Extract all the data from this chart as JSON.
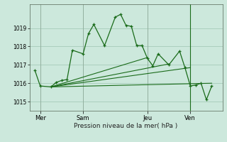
{
  "background_color": "#cce8dc",
  "grid_color": "#aacfbe",
  "line_color": "#1a6b1a",
  "xlabel": "Pression niveau de la mer( hPa )",
  "ylim": [
    1014.5,
    1020.3
  ],
  "yticks": [
    1015,
    1016,
    1017,
    1018,
    1019
  ],
  "ytick_labels": [
    "1015",
    "1016",
    "1017",
    "1018",
    "1019"
  ],
  "day_labels": [
    "Mer",
    "Sam",
    "Jeu",
    "Ven"
  ],
  "day_positions": [
    2,
    10,
    22,
    30
  ],
  "ven_vline": 30,
  "xlim": [
    0,
    36
  ],
  "series1_x": [
    1,
    2,
    4,
    5,
    6,
    7,
    8,
    10,
    11,
    12,
    14,
    16,
    17,
    18,
    19,
    20,
    21,
    22,
    23,
    24,
    26,
    28,
    29,
    30,
    31,
    32,
    33,
    34
  ],
  "series1_y": [
    1016.7,
    1015.85,
    1015.8,
    1016.05,
    1016.15,
    1016.2,
    1017.8,
    1017.6,
    1018.7,
    1019.2,
    1018.05,
    1019.6,
    1019.75,
    1019.15,
    1019.1,
    1018.05,
    1018.05,
    1017.35,
    1016.95,
    1017.6,
    1017.0,
    1017.75,
    1016.85,
    1015.85,
    1015.9,
    1016.0,
    1015.1,
    1015.85
  ],
  "series2_x": [
    4,
    34
  ],
  "series2_y": [
    1015.8,
    1016.0
  ],
  "series3_x": [
    4,
    30
  ],
  "series3_y": [
    1015.8,
    1016.85
  ],
  "series4_x": [
    4,
    26
  ],
  "series4_y": [
    1015.8,
    1017.05
  ],
  "series5_x": [
    4,
    22
  ],
  "series5_y": [
    1015.8,
    1017.4
  ]
}
